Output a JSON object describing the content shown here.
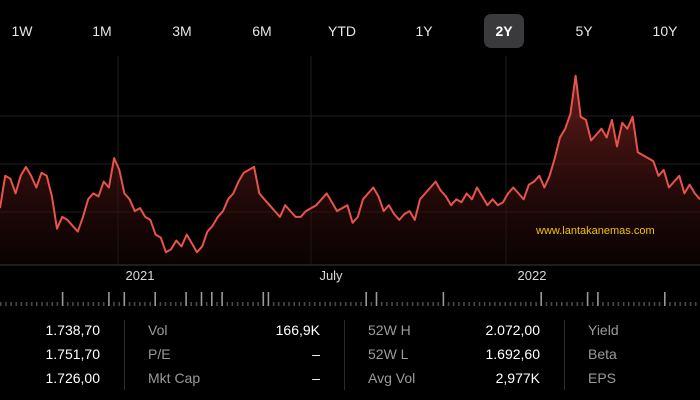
{
  "ranges": [
    {
      "label": "1W",
      "selected": false
    },
    {
      "label": "1M",
      "selected": false
    },
    {
      "label": "3M",
      "selected": false
    },
    {
      "label": "6M",
      "selected": false
    },
    {
      "label": "YTD",
      "selected": false
    },
    {
      "label": "1Y",
      "selected": false
    },
    {
      "label": "2Y",
      "selected": true
    },
    {
      "label": "5Y",
      "selected": false
    },
    {
      "label": "10Y",
      "selected": false
    }
  ],
  "chart": {
    "x_labels": [
      "2021",
      "July",
      "2022"
    ],
    "watermark": "www.lantakanemas.com",
    "line_color": "#e8534a",
    "fill_color_top": "#7a2320",
    "price_series": [
      1775,
      1830,
      1825,
      1800,
      1830,
      1845,
      1830,
      1810,
      1835,
      1830,
      1795,
      1740,
      1760,
      1755,
      1745,
      1735,
      1760,
      1790,
      1800,
      1795,
      1820,
      1810,
      1860,
      1840,
      1800,
      1790,
      1770,
      1775,
      1760,
      1755,
      1730,
      1725,
      1700,
      1705,
      1720,
      1710,
      1730,
      1715,
      1700,
      1710,
      1735,
      1745,
      1760,
      1770,
      1790,
      1800,
      1820,
      1835,
      1840,
      1845,
      1800,
      1790,
      1780,
      1770,
      1760,
      1780,
      1770,
      1760,
      1760,
      1770,
      1775,
      1780,
      1790,
      1800,
      1785,
      1770,
      1775,
      1780,
      1750,
      1760,
      1790,
      1800,
      1810,
      1795,
      1770,
      1780,
      1765,
      1755,
      1765,
      1770,
      1755,
      1790,
      1800,
      1810,
      1820,
      1805,
      1795,
      1780,
      1790,
      1785,
      1800,
      1790,
      1810,
      1795,
      1780,
      1790,
      1780,
      1785,
      1800,
      1810,
      1800,
      1790,
      1815,
      1820,
      1830,
      1810,
      1830,
      1860,
      1895,
      1910,
      1935,
      2000,
      1930,
      1925,
      1890,
      1900,
      1910,
      1895,
      1925,
      1880,
      1920,
      1910,
      1930,
      1870,
      1865,
      1860,
      1855,
      1830,
      1840,
      1810,
      1820,
      1830,
      1800,
      1815,
      1800,
      1790
    ],
    "volume_bars": [
      0,
      0,
      0,
      0,
      0,
      0,
      0,
      0,
      0,
      0,
      0,
      0,
      1,
      0,
      0,
      0,
      0,
      0,
      0,
      0,
      0,
      1,
      0,
      0,
      1,
      0,
      0,
      0,
      0,
      0,
      1,
      0,
      0,
      0,
      0,
      0,
      1,
      0,
      0,
      1,
      0,
      1,
      0,
      1,
      0,
      0,
      0,
      0,
      0,
      0,
      0,
      1,
      1,
      0,
      0,
      0,
      0,
      0,
      0,
      0,
      0,
      0,
      0,
      0,
      0,
      0,
      0,
      0,
      0,
      0,
      0,
      1,
      0,
      1,
      0,
      0,
      0,
      0,
      0,
      0,
      0,
      0,
      0,
      0,
      0,
      0,
      1,
      0,
      0,
      0,
      0,
      0,
      0,
      0,
      0,
      0,
      0,
      0,
      0,
      0,
      0,
      0,
      0,
      0,
      0,
      1,
      0,
      0,
      0,
      0,
      0,
      0,
      0,
      0,
      1,
      0,
      1,
      0,
      0,
      0,
      0,
      0,
      0,
      0,
      0,
      0,
      0,
      0,
      0,
      1,
      0,
      0,
      0,
      0,
      0,
      0,
      0
    ]
  },
  "stats": {
    "col1": [
      "1.738,70",
      "1.751,70",
      "1.726,00"
    ],
    "col2_labels": [
      "Vol",
      "P/E",
      "Mkt Cap"
    ],
    "col2_values": [
      "166,9K",
      "–",
      "–"
    ],
    "col3_labels": [
      "52W H",
      "52W L",
      "Avg Vol"
    ],
    "col3_values": [
      "2.072,00",
      "1.692,60",
      "2,977K"
    ],
    "col4_labels": [
      "Yield",
      "Beta",
      "EPS"
    ]
  }
}
